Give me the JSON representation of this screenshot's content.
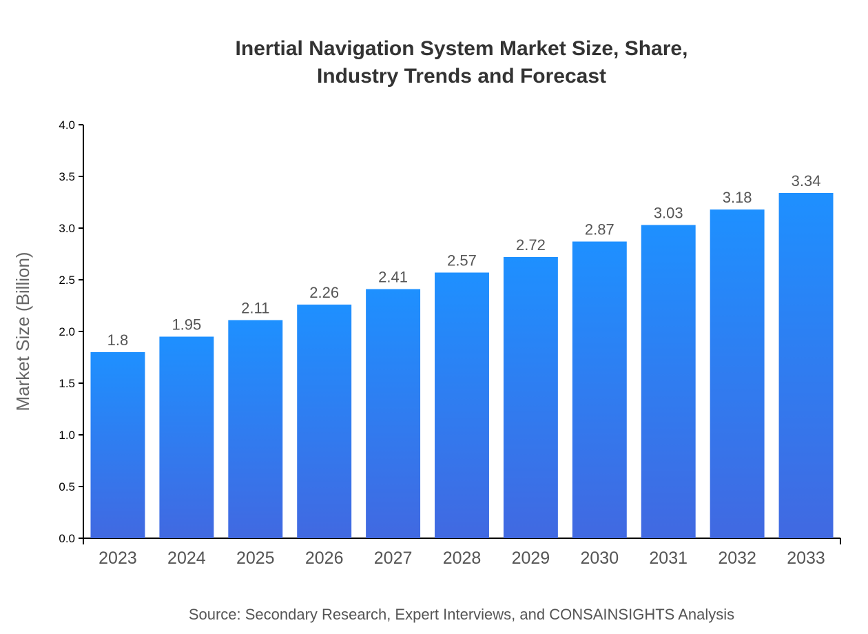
{
  "chart_data": {
    "type": "bar",
    "title_lines": [
      "Inertial Navigation System Market Size, Share,",
      "Industry Trends and Forecast"
    ],
    "categories": [
      "2023",
      "2024",
      "2025",
      "2026",
      "2027",
      "2028",
      "2029",
      "2030",
      "2031",
      "2032",
      "2033"
    ],
    "values": [
      1.8,
      1.95,
      2.11,
      2.26,
      2.41,
      2.57,
      2.72,
      2.87,
      3.03,
      3.18,
      3.34
    ],
    "data_labels": [
      "1.8",
      "1.95",
      "2.11",
      "2.26",
      "2.41",
      "2.57",
      "2.72",
      "2.87",
      "3.03",
      "3.18",
      "3.34"
    ],
    "xlabel": "",
    "ylabel": "Market Size (Billion)",
    "ylim": [
      0,
      4.0
    ],
    "yticks": [
      "0.0",
      "0.5",
      "1.0",
      "1.5",
      "2.0",
      "2.5",
      "3.0",
      "3.5",
      "4.0"
    ],
    "grid": false,
    "colors": {
      "bar_top": "#1e90ff",
      "bar_bottom": "#4169e1"
    },
    "source": "Source: Secondary Research, Expert Interviews, and CONSAINSIGHTS Analysis"
  }
}
